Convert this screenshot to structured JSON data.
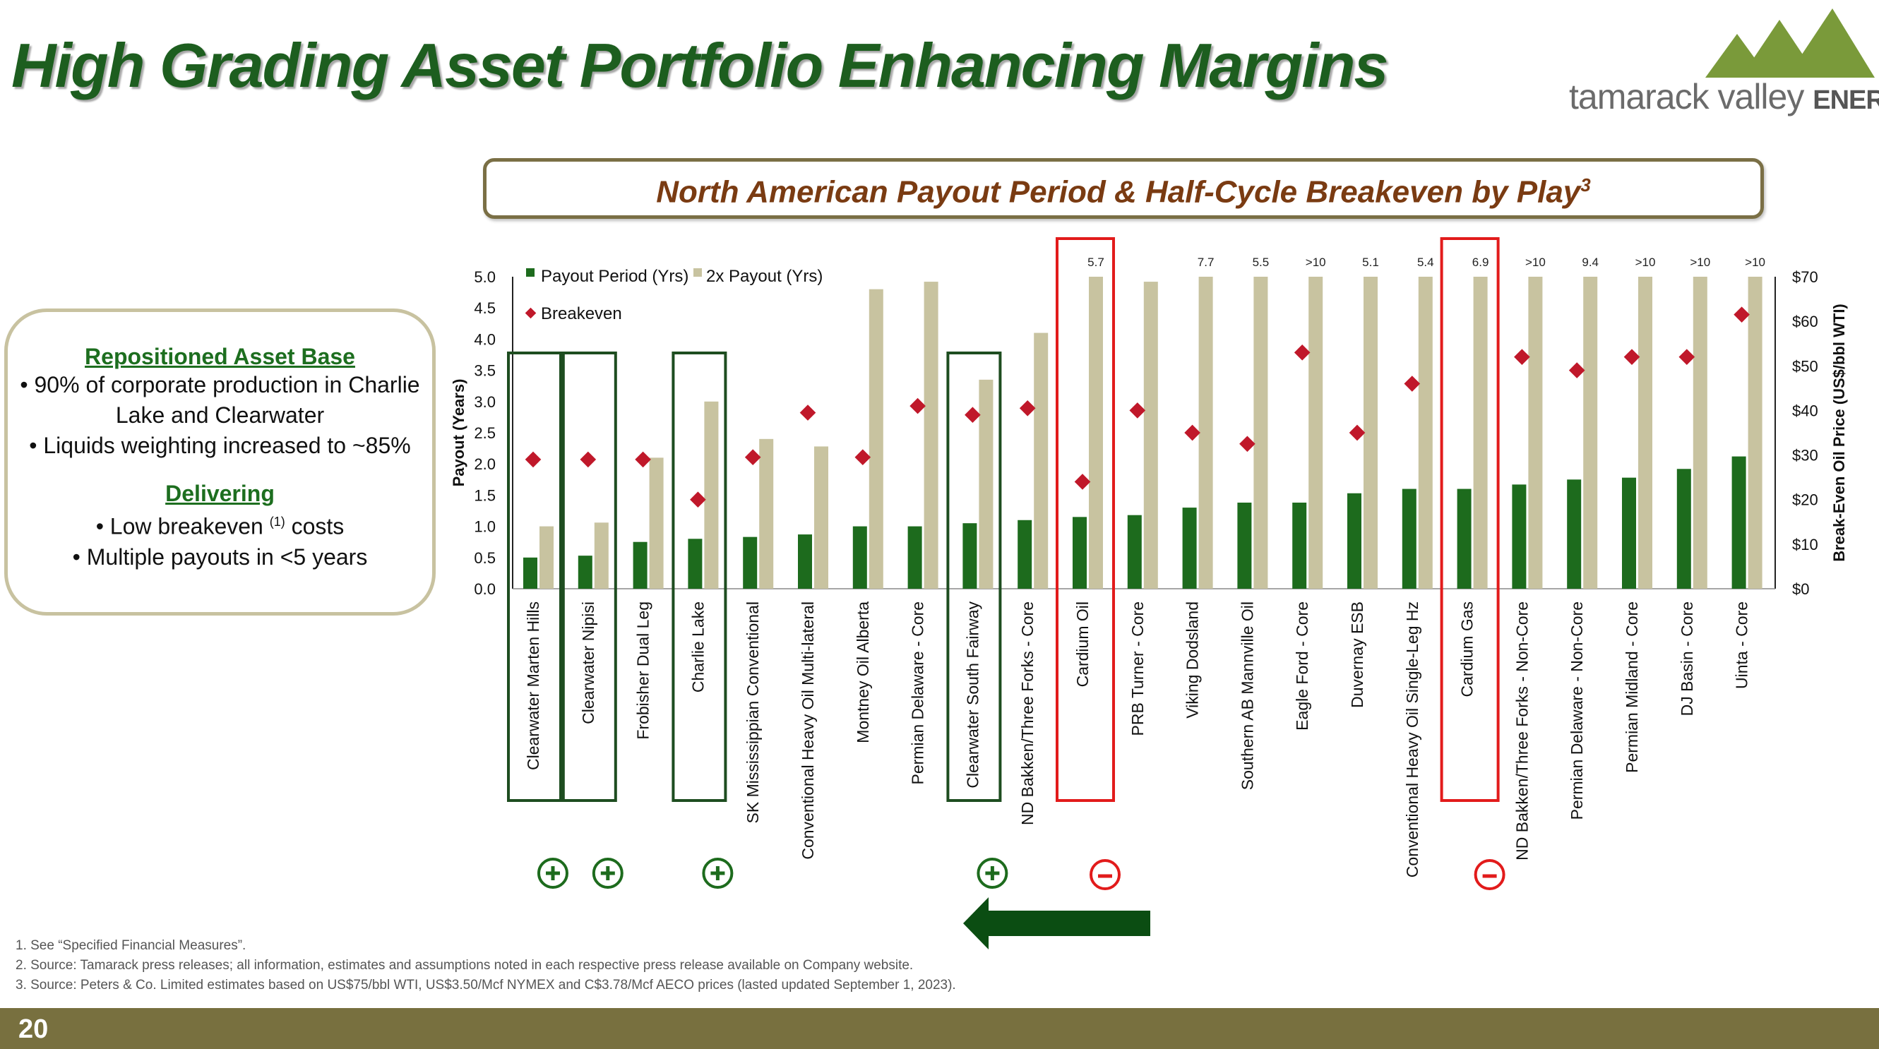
{
  "title": "High Grading Asset Portfolio Enhancing Margins",
  "logo": {
    "text": "tamarack valley",
    "text_bold": "ENERGY",
    "icon": "mountain-peaks-logo",
    "color": "#7a9a3a"
  },
  "chart_title": "North American Payout Period & Half-Cycle Breakeven by Play",
  "chart_title_sup": "3",
  "left_box": {
    "heading1": "Repositioned Asset Base",
    "bullet1_line1": "• 90% of corporate production in Charlie",
    "bullet1_line2": "Lake and Clearwater",
    "bullet2": "• Liquids weighting increased to ~85%",
    "heading2": "Delivering",
    "bullet3_pre": "• Low breakeven ",
    "bullet3_sup": "(1)",
    "bullet3_post": " costs",
    "bullet4": "• Multiple payouts in <5 years"
  },
  "chart_data": {
    "type": "bar",
    "categories": [
      "Clearwater Marten Hills",
      "Clearwater Nipisi",
      "Frobisher Dual Leg",
      "Charlie Lake",
      "SK Mississippian Conventional",
      "Conventional Heavy Oil Multi-lateral",
      "Montney Oil Alberta",
      "Permian Delaware - Core",
      "Clearwater South Fairway",
      "ND Bakken/Three Forks - Core",
      "Cardium Oil",
      "PRB Turner - Core",
      "Viking Dodsland",
      "Southern AB Mannville Oil",
      "Eagle Ford - Core",
      "Duvernay ESB",
      "Conventional Heavy Oil Single-Leg Hz",
      "Cardium Gas",
      "ND Bakken/Three Forks - Non-Core",
      "Permian Delaware - Non-Core",
      "Permian Midland - Core",
      "DJ Basin - Core",
      "Uinta - Core"
    ],
    "series": [
      {
        "name": "Payout Period (Yrs)",
        "color": "#1d6b1d",
        "values": [
          0.5,
          0.53,
          0.75,
          0.8,
          0.83,
          0.87,
          1.0,
          1.0,
          1.05,
          1.1,
          1.15,
          1.18,
          1.3,
          1.38,
          1.38,
          1.53,
          1.6,
          1.6,
          1.67,
          1.75,
          1.78,
          1.92,
          2.12
        ]
      },
      {
        "name": "2x Payout (Yrs)",
        "color": "#c8c3a0",
        "values": [
          1.0,
          1.06,
          2.1,
          3.0,
          2.4,
          2.28,
          4.8,
          4.92,
          3.35,
          4.1,
          5.7,
          4.92,
          7.7,
          5.5,
          10,
          5.1,
          5.4,
          6.9,
          10,
          9.4,
          10,
          10,
          10
        ]
      },
      {
        "name": "Breakeven",
        "color": "#c0182a",
        "values": [
          29,
          29,
          29,
          20,
          29.5,
          39.5,
          29.5,
          41,
          39,
          40.5,
          24,
          40,
          35,
          32.5,
          53,
          35,
          46,
          null,
          52,
          49,
          52,
          52,
          61.5
        ]
      }
    ],
    "top_labels": [
      "",
      "",
      "",
      "",
      "",
      "",
      "",
      "",
      "",
      "",
      "5.7",
      "",
      "7.7",
      "5.5",
      ">10",
      "5.1",
      "5.4",
      "6.9",
      ">10",
      "9.4",
      ">10",
      ">10",
      ">10"
    ],
    "y_left": {
      "label": "Payout (Years)",
      "min": 0,
      "max": 5,
      "ticks": [
        "0.0",
        "0.5",
        "1.0",
        "1.5",
        "2.0",
        "2.5",
        "3.0",
        "3.5",
        "4.0",
        "4.5",
        "5.0"
      ]
    },
    "y_right": {
      "label": "Break-Even Oil Price (US$/bbl WTI)",
      "min": 0,
      "max": 70,
      "ticks": [
        "$0",
        "$10",
        "$20",
        "$30",
        "$40",
        "$50",
        "$60",
        "$70"
      ]
    },
    "highlight_green": [
      0,
      1,
      3,
      8
    ],
    "highlight_red": [
      10,
      17
    ],
    "plus_markers": [
      0,
      1,
      3,
      8
    ],
    "minus_markers": [
      10,
      17
    ],
    "colors": {
      "green_box": "#1e4d20",
      "red_box": "#e21b1b",
      "plus": "#1d6b1d",
      "minus": "#e21b1b",
      "arrow": "#0b4d12"
    }
  },
  "footnotes": [
    "1.  See “Specified Financial Measures”.",
    "2.  Source: Tamarack press releases; all information, estimates and assumptions noted in each respective press release available on Company website.",
    "3.  Source: Peters & Co. Limited estimates based on US$75/bbl WTI, US$3.50/Mcf NYMEX and C$3.78/Mcf AECO prices (lasted updated September 1, 2023)."
  ],
  "page_number": "20"
}
